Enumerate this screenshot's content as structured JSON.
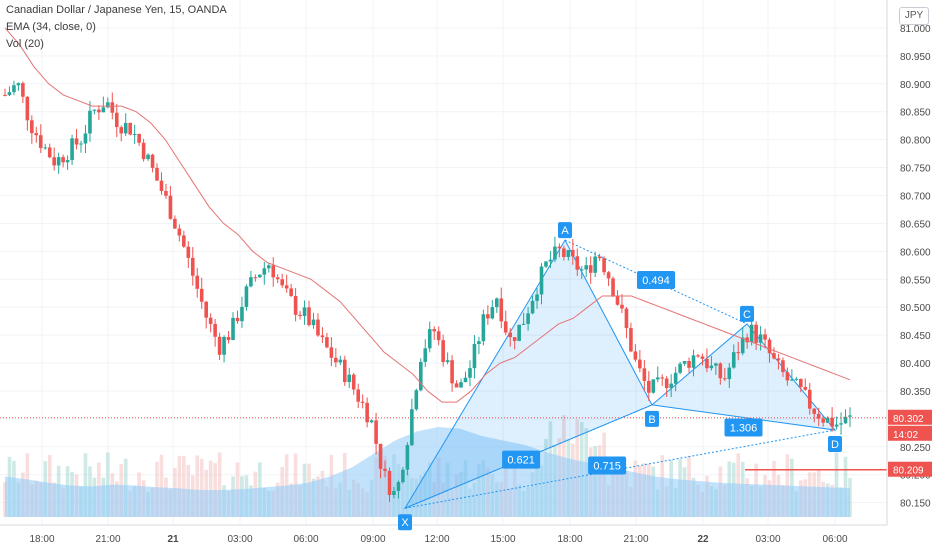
{
  "header": {
    "title": "Canadian Dollar / Japanese Yen, 15, OANDA",
    "ema": "EMA (34, close, 0)",
    "vol": "Vol (20)"
  },
  "currency_badge": "JPY",
  "chart_data": {
    "type": "candlestick",
    "title": "Canadian Dollar / Japanese Yen, 15, OANDA",
    "y_ticks": [
      "81.000",
      "80.950",
      "80.900",
      "80.850",
      "80.800",
      "80.750",
      "80.700",
      "80.650",
      "80.600",
      "80.550",
      "80.500",
      "80.450",
      "80.400",
      "80.350",
      "80.300",
      "80.250",
      "80.200",
      "80.150"
    ],
    "y_tick_values": [
      81.0,
      80.95,
      80.9,
      80.85,
      80.8,
      80.75,
      80.7,
      80.65,
      80.6,
      80.55,
      80.5,
      80.45,
      80.4,
      80.35,
      80.3,
      80.25,
      80.2,
      80.15
    ],
    "x_ticks": [
      "18:00",
      "21:00",
      "21",
      "03:00",
      "06:00",
      "09:00",
      "12:00",
      "15:00",
      "18:00",
      "21:00",
      "22",
      "03:00",
      "06:00"
    ],
    "ylim": [
      80.11,
      81.05
    ],
    "current_price": "80.302",
    "countdown": "14:02",
    "hline_price": "80.209",
    "harmonic_pattern": {
      "points": [
        {
          "label": "X",
          "price": 80.14
        },
        {
          "label": "A",
          "price": 80.62
        },
        {
          "label": "B",
          "price": 80.325
        },
        {
          "label": "C",
          "price": 80.47
        },
        {
          "label": "D",
          "price": 80.28
        }
      ],
      "ratios": [
        "0.494",
        "0.621",
        "1.306",
        "0.715"
      ]
    },
    "price_path": [
      80.88,
      80.9,
      80.83,
      80.79,
      80.76,
      80.78,
      80.8,
      80.85,
      80.87,
      80.83,
      80.82,
      80.78,
      80.73,
      80.68,
      80.62,
      80.55,
      80.48,
      80.43,
      80.46,
      80.52,
      80.56,
      80.58,
      80.53,
      80.5,
      80.48,
      80.44,
      80.41,
      80.38,
      80.34,
      80.3,
      80.2,
      80.16,
      80.28,
      80.42,
      80.46,
      80.4,
      80.35,
      80.4,
      80.48,
      80.52,
      80.44,
      80.47,
      80.53,
      80.58,
      80.6,
      80.58,
      80.56,
      80.6,
      80.55,
      80.48,
      80.4,
      80.35,
      80.36,
      80.38,
      80.4,
      80.42,
      80.39,
      80.37,
      80.42,
      80.46,
      80.44,
      80.4,
      80.37,
      80.35,
      80.32,
      80.3,
      80.29,
      80.3
    ],
    "ema_path": [
      81.0,
      80.97,
      80.93,
      80.9,
      80.88,
      80.87,
      80.86,
      80.86,
      80.86,
      80.85,
      80.83,
      80.8,
      80.76,
      80.72,
      80.68,
      80.65,
      80.63,
      80.6,
      80.58,
      80.57,
      80.56,
      80.55,
      80.53,
      80.51,
      80.48,
      80.45,
      80.42,
      80.4,
      80.38,
      80.35,
      80.33,
      80.33,
      80.35,
      80.38,
      80.4,
      80.41,
      80.43,
      80.45,
      80.47,
      80.48,
      80.5,
      80.52,
      80.52,
      80.52,
      80.51,
      80.5,
      80.49,
      80.48,
      80.47,
      80.46,
      80.45,
      80.44,
      80.43,
      80.42,
      80.41,
      80.4,
      80.39,
      80.38,
      80.37
    ],
    "volume_profile": [
      0.45,
      0.42,
      0.38,
      0.35,
      0.34,
      0.36,
      0.35,
      0.33,
      0.32,
      0.3,
      0.3,
      0.31,
      0.33,
      0.35,
      0.38,
      0.45,
      0.55,
      0.7,
      0.85,
      0.95,
      1.0,
      0.98,
      0.9,
      0.85,
      0.8,
      0.72,
      0.65,
      0.6,
      0.55,
      0.5,
      0.45,
      0.42,
      0.4,
      0.38,
      0.37,
      0.36,
      0.35,
      0.34,
      0.33,
      0.32
    ]
  },
  "colors": {
    "up": "#26a69a",
    "down": "#ef5350",
    "ema": "#e57373",
    "pattern": "#2196f3",
    "price_tag": "#ef5350"
  }
}
